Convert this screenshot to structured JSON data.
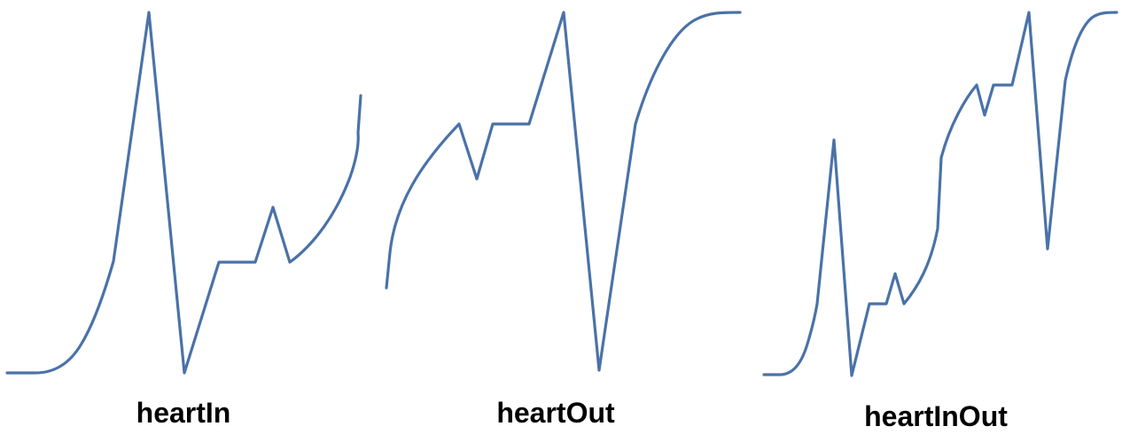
{
  "colors": {
    "curve": "#4a72a8",
    "label": "#000000",
    "background": "#ffffff"
  },
  "panels": [
    {
      "id": "heartIn",
      "label": "heartIn"
    },
    {
      "id": "heartOut",
      "label": "heartOut"
    },
    {
      "id": "heartInOut",
      "label": "heartInOut"
    }
  ]
}
